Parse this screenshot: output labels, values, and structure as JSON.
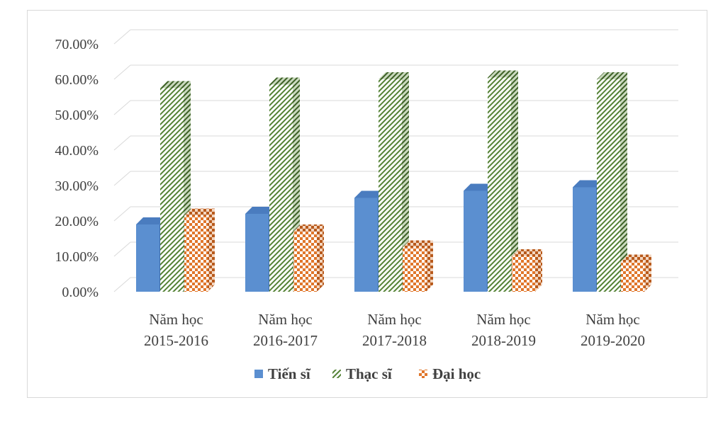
{
  "chart_data": {
    "type": "bar",
    "categories": [
      [
        "Năm học",
        "2015-2016"
      ],
      [
        "Năm học",
        "2016-2017"
      ],
      [
        "Năm học",
        "2017-2018"
      ],
      [
        "Năm học",
        "2018-2019"
      ],
      [
        "Năm học",
        "2019-2020"
      ]
    ],
    "series": [
      {
        "name": "Tiến sĩ",
        "values": [
          19.0,
          22.0,
          26.5,
          28.5,
          29.5
        ],
        "color": "#5b8fd0",
        "pattern": "solid"
      },
      {
        "name": "Thạc sĩ",
        "values": [
          57.5,
          58.5,
          60.0,
          60.5,
          60.0
        ],
        "color": "#548235",
        "pattern": "diagonal-hatch"
      },
      {
        "name": "Đại học",
        "values": [
          21.5,
          17.0,
          12.5,
          10.0,
          8.5
        ],
        "color": "#e0762b",
        "pattern": "checkerboard"
      }
    ],
    "y_ticks": [
      "0.00%",
      "10.00%",
      "20.00%",
      "30.00%",
      "40.00%",
      "50.00%",
      "60.00%",
      "70.00%"
    ],
    "ylim": [
      0,
      70
    ],
    "grid": true,
    "legend_position": "bottom",
    "style": "3d-clustered-column"
  }
}
